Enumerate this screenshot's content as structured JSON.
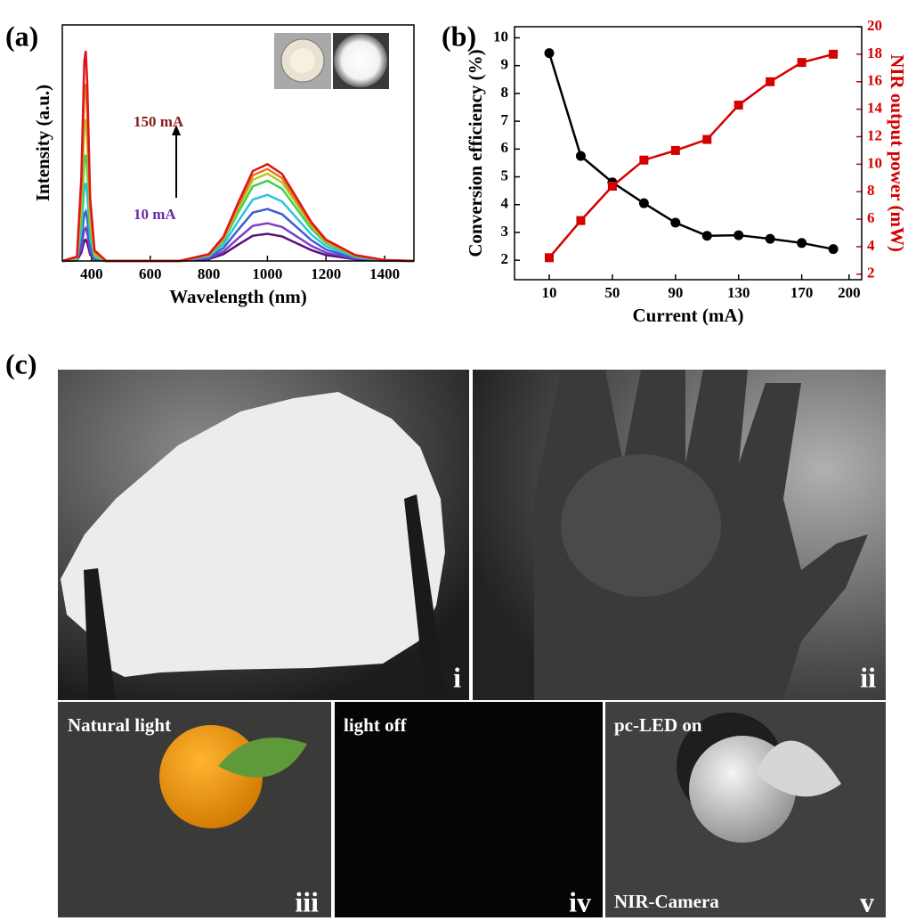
{
  "panel_labels": [
    "(a)",
    "(b)",
    "(c)"
  ],
  "chart_data": [
    {
      "type": "line",
      "xlabel": "Wavelength (nm)",
      "ylabel": "Intensity (a.u.)",
      "x": [
        300,
        350,
        365,
        375,
        380,
        385,
        395,
        410,
        450,
        700,
        800,
        850,
        900,
        950,
        1000,
        1050,
        1100,
        1150,
        1200,
        1300,
        1400,
        1500
      ],
      "xlim": [
        300,
        1500
      ],
      "xticks": [
        400,
        600,
        800,
        1000,
        1200,
        1400
      ],
      "ylim": [
        0,
        1
      ],
      "annotations": [
        {
          "text": "150 mA",
          "color": "#8b1a1a"
        },
        {
          "text": "10 mA",
          "color": "#6a2aa8"
        }
      ],
      "series": [
        {
          "color": "#5b0f7a",
          "values": [
            0,
            0.002,
            0.036,
            0.086,
            0.09,
            0.077,
            0.027,
            0.005,
            0,
            0,
            0.008,
            0.029,
            0.069,
            0.107,
            0.115,
            0.104,
            0.075,
            0.046,
            0.025,
            0.007,
            0.001,
            0
          ]
        },
        {
          "color": "#7b3fc4",
          "values": [
            0,
            0.003,
            0.056,
            0.133,
            0.14,
            0.119,
            0.042,
            0.007,
            0,
            0,
            0.011,
            0.04,
            0.096,
            0.149,
            0.16,
            0.144,
            0.104,
            0.064,
            0.035,
            0.01,
            0.002,
            0
          ]
        },
        {
          "color": "#3c5fd0",
          "values": [
            0,
            0.004,
            0.084,
            0.2,
            0.21,
            0.179,
            0.063,
            0.011,
            0,
            0,
            0.015,
            0.055,
            0.132,
            0.205,
            0.22,
            0.198,
            0.143,
            0.088,
            0.048,
            0.013,
            0.002,
            0
          ]
        },
        {
          "color": "#29c4e0",
          "values": [
            0,
            0.007,
            0.132,
            0.314,
            0.33,
            0.281,
            0.099,
            0.017,
            0,
            0,
            0.02,
            0.07,
            0.168,
            0.26,
            0.28,
            0.252,
            0.182,
            0.112,
            0.062,
            0.017,
            0.003,
            0
          ]
        },
        {
          "color": "#3ed24a",
          "values": [
            0,
            0.009,
            0.18,
            0.428,
            0.45,
            0.383,
            0.135,
            0.023,
            0,
            0,
            0.024,
            0.085,
            0.204,
            0.316,
            0.34,
            0.306,
            0.221,
            0.136,
            0.075,
            0.02,
            0.003,
            0
          ]
        },
        {
          "color": "#b8c62a",
          "values": [
            0,
            0.012,
            0.24,
            0.57,
            0.6,
            0.51,
            0.18,
            0.03,
            0,
            0,
            0.026,
            0.093,
            0.222,
            0.344,
            0.37,
            0.333,
            0.241,
            0.148,
            0.081,
            0.022,
            0.004,
            0
          ]
        },
        {
          "color": "#e07a1a",
          "values": [
            0,
            0.015,
            0.3,
            0.713,
            0.75,
            0.638,
            0.225,
            0.038,
            0,
            0,
            0.027,
            0.098,
            0.234,
            0.363,
            0.39,
            0.351,
            0.254,
            0.156,
            0.086,
            0.023,
            0.004,
            0
          ]
        },
        {
          "color": "#e0141a",
          "values": [
            0,
            0.018,
            0.356,
            0.846,
            0.89,
            0.757,
            0.267,
            0.045,
            0,
            0,
            0.029,
            0.103,
            0.246,
            0.381,
            0.41,
            0.369,
            0.267,
            0.164,
            0.09,
            0.025,
            0.004,
            0
          ]
        }
      ]
    },
    {
      "type": "line",
      "xlabel": "Current (mA)",
      "ylabel": "Conversion efficiency (%)",
      "y2label": "NIR output power (mW)",
      "y2_color": "#d40000",
      "x": [
        10,
        30,
        50,
        70,
        90,
        110,
        130,
        150,
        170,
        190
      ],
      "xlim": [
        -12,
        208
      ],
      "xticks": [
        10,
        50,
        90,
        130,
        170,
        200
      ],
      "ylim": [
        1.3,
        10.4
      ],
      "yticks": [
        2,
        3,
        4,
        5,
        6,
        7,
        8,
        9,
        10
      ],
      "y2lim": [
        1.6,
        20
      ],
      "y2ticks": [
        2,
        4,
        6,
        8,
        10,
        12,
        14,
        16,
        18,
        20
      ],
      "series": [
        {
          "color": "#000000",
          "marker": "circle",
          "values": [
            9.45,
            5.75,
            4.8,
            4.05,
            3.35,
            2.88,
            2.9,
            2.77,
            2.62,
            2.4
          ]
        },
        {
          "color": "#d40000",
          "marker": "square",
          "axis": "y2",
          "values": [
            3.2,
            5.9,
            8.4,
            10.3,
            11.0,
            11.8,
            14.3,
            16.0,
            17.4,
            18.0
          ]
        }
      ]
    }
  ],
  "photos": [
    {
      "label": "i"
    },
    {
      "label": "ii"
    },
    {
      "caption": "Natural light",
      "label": "iii"
    },
    {
      "caption": "light off",
      "label": "iv"
    },
    {
      "caption": "pc-LED on",
      "footer": "NIR-Camera",
      "label": "v"
    }
  ]
}
